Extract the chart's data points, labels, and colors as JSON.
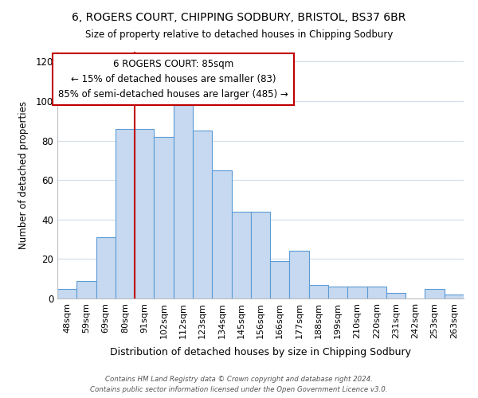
{
  "title": "6, ROGERS COURT, CHIPPING SODBURY, BRISTOL, BS37 6BR",
  "subtitle": "Size of property relative to detached houses in Chipping Sodbury",
  "xlabel": "Distribution of detached houses by size in Chipping Sodbury",
  "ylabel": "Number of detached properties",
  "bar_labels": [
    "48sqm",
    "59sqm",
    "69sqm",
    "80sqm",
    "91sqm",
    "102sqm",
    "112sqm",
    "123sqm",
    "134sqm",
    "145sqm",
    "156sqm",
    "166sqm",
    "177sqm",
    "188sqm",
    "199sqm",
    "210sqm",
    "220sqm",
    "231sqm",
    "242sqm",
    "253sqm",
    "263sqm"
  ],
  "bar_values": [
    5,
    9,
    31,
    86,
    86,
    82,
    98,
    85,
    65,
    44,
    44,
    19,
    24,
    7,
    6,
    6,
    6,
    3,
    0,
    5,
    2
  ],
  "bar_color": "#c6d9f0",
  "bar_edge_color": "#5b9bd5",
  "vline_color": "#c00000",
  "vline_pos": 3.5,
  "ylim": [
    0,
    125
  ],
  "yticks": [
    0,
    20,
    40,
    60,
    80,
    100,
    120
  ],
  "annotation_title": "6 ROGERS COURT: 85sqm",
  "annotation_line1": "← 15% of detached houses are smaller (83)",
  "annotation_line2": "85% of semi-detached houses are larger (485) →",
  "annotation_box_color": "#ffffff",
  "annotation_box_edge": "#c00000",
  "footer1": "Contains HM Land Registry data © Crown copyright and database right 2024.",
  "footer2": "Contains public sector information licensed under the Open Government Licence v3.0.",
  "background_color": "#ffffff",
  "grid_color": "#d0dce8"
}
